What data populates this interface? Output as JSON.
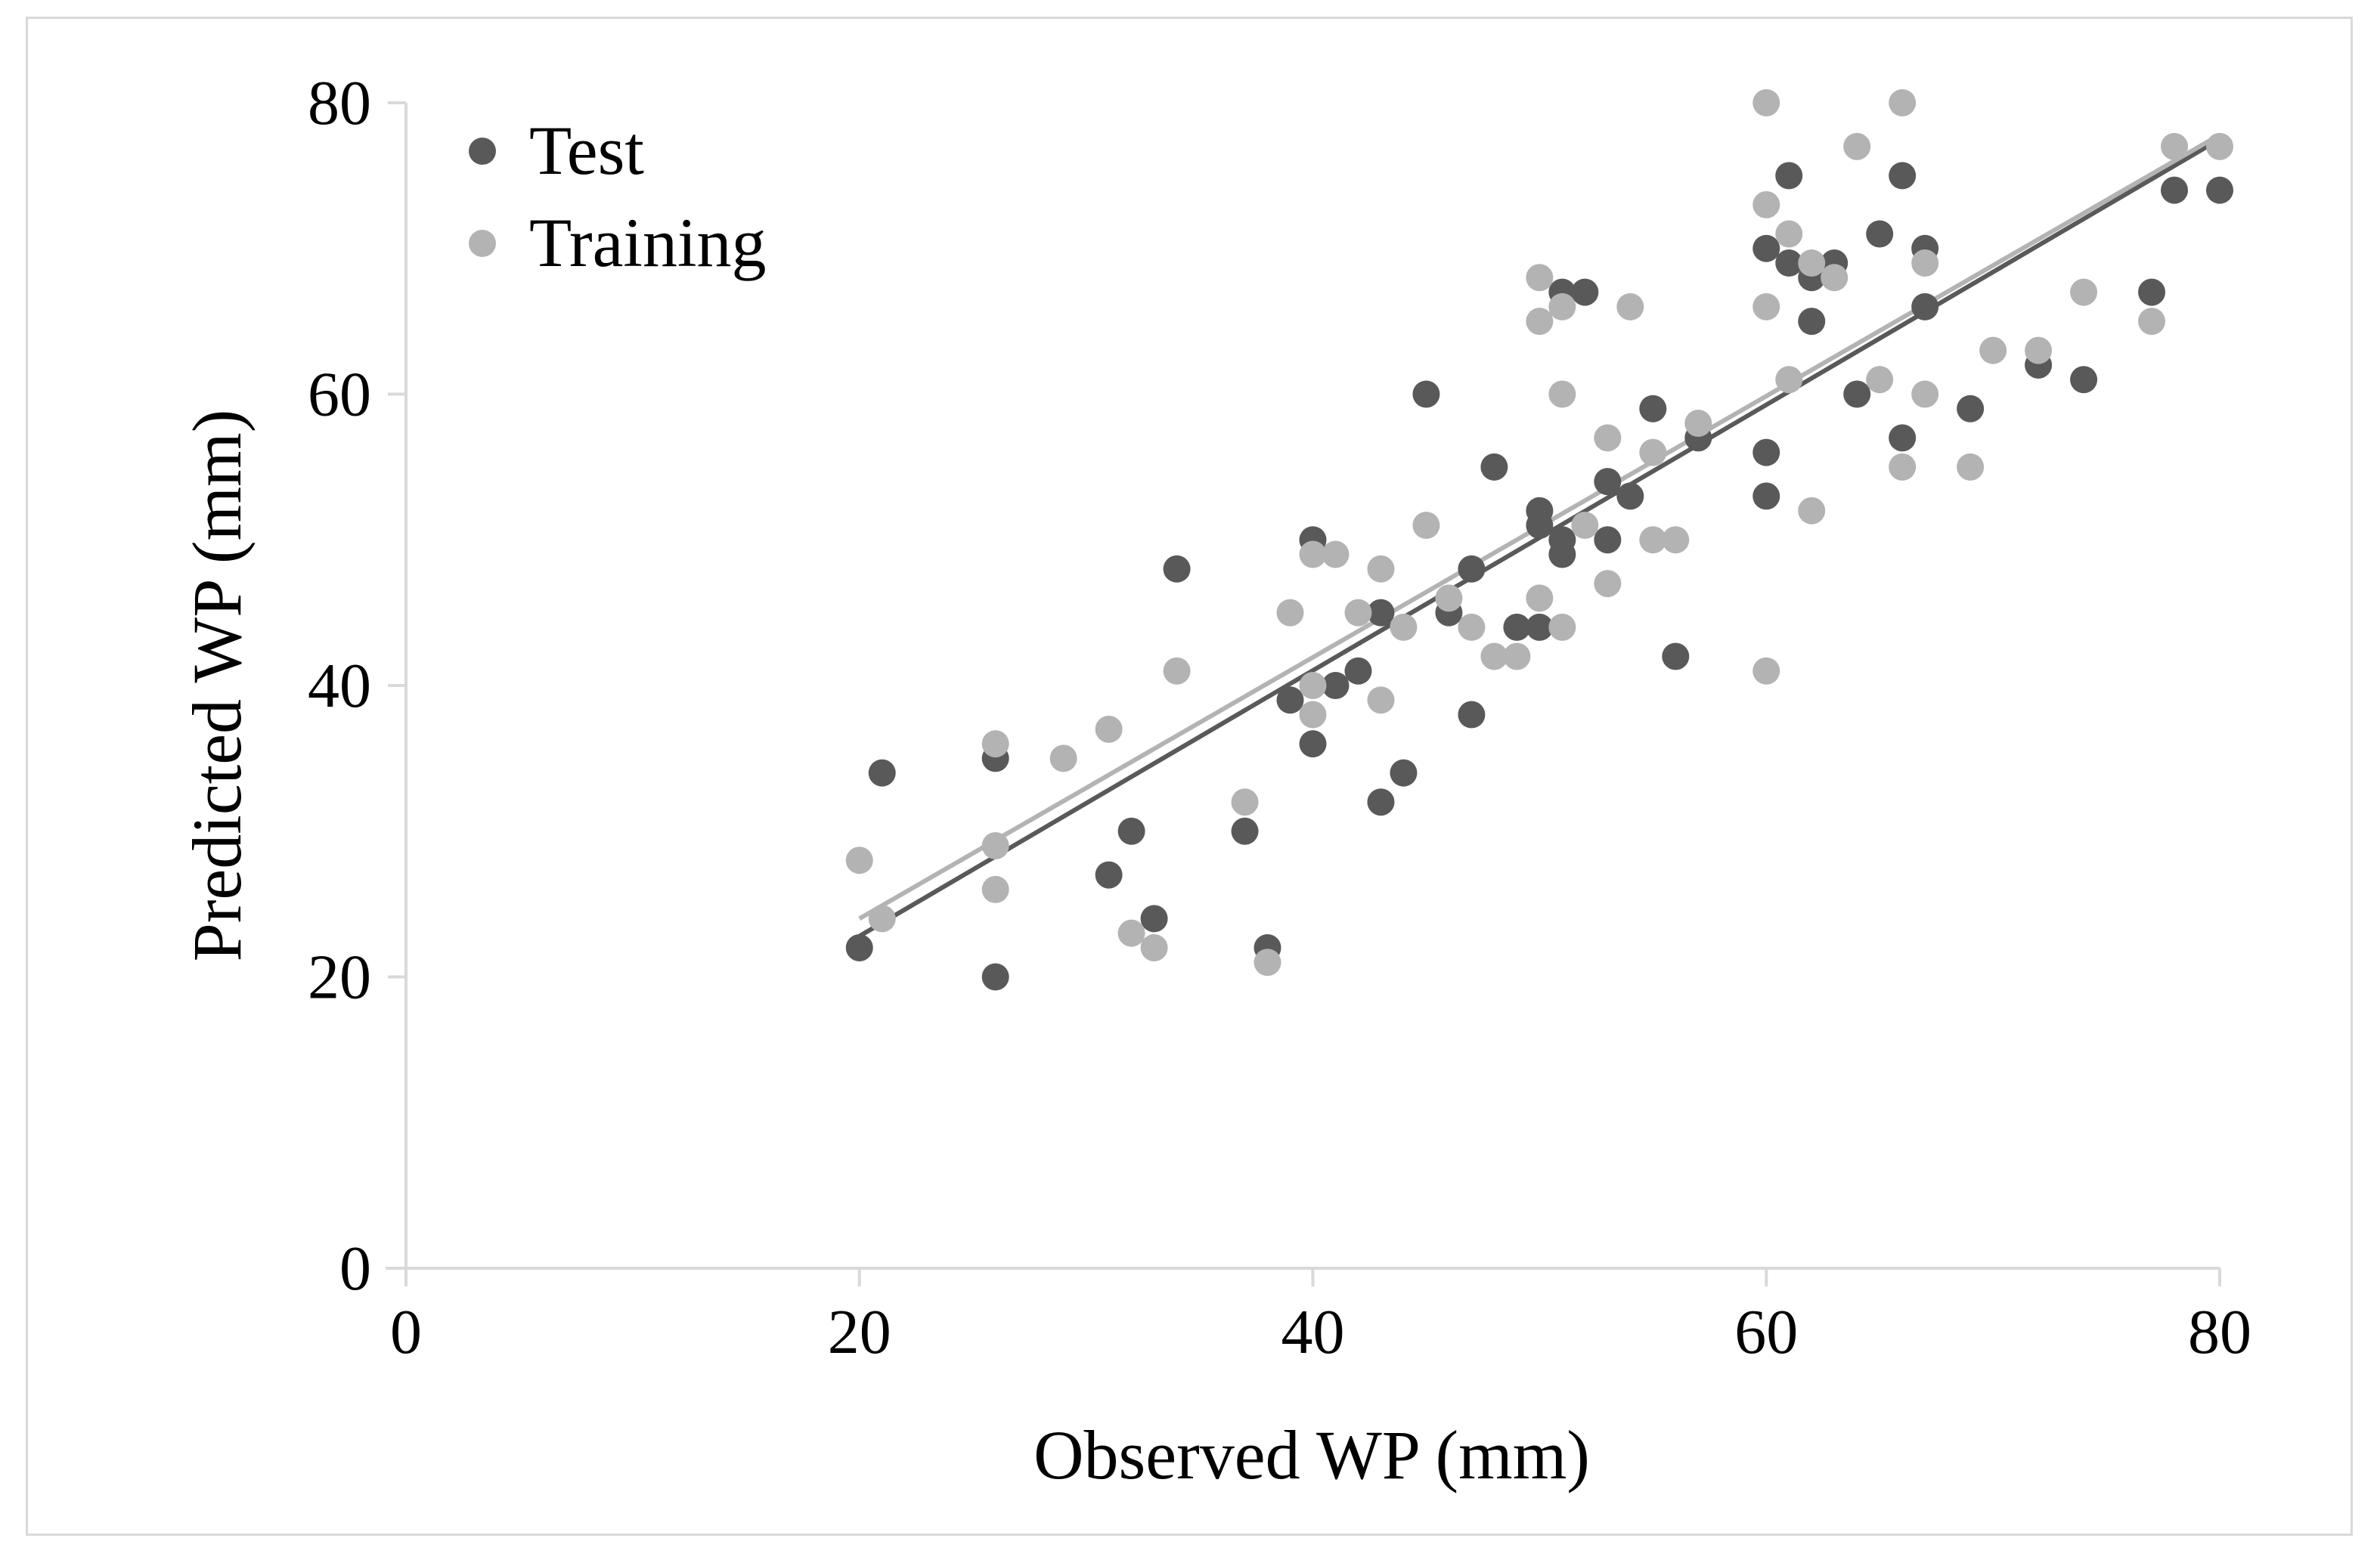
{
  "chart_data": {
    "type": "scatter",
    "title": "",
    "xlabel": "Observed WP (mm)",
    "ylabel": "Predicted WP (mm)",
    "xlim": [
      0,
      80
    ],
    "ylim": [
      0,
      80
    ],
    "xticks": [
      0,
      20,
      40,
      60,
      80
    ],
    "yticks": [
      0,
      20,
      40,
      60,
      80
    ],
    "grid": false,
    "legend_position": "top-left",
    "series": [
      {
        "name": "Test",
        "color": "#595959",
        "trendline": {
          "x": [
            20,
            80
          ],
          "y": [
            22.8,
            77.5
          ]
        },
        "points": [
          [
            20,
            22
          ],
          [
            21,
            34
          ],
          [
            26,
            35
          ],
          [
            26,
            20
          ],
          [
            31,
            27
          ],
          [
            32,
            30
          ],
          [
            33,
            24
          ],
          [
            34,
            48
          ],
          [
            37,
            30
          ],
          [
            38,
            22
          ],
          [
            39,
            39
          ],
          [
            40,
            50
          ],
          [
            40,
            36
          ],
          [
            41,
            40
          ],
          [
            42,
            41
          ],
          [
            43,
            45
          ],
          [
            43,
            32
          ],
          [
            44,
            34
          ],
          [
            45,
            60
          ],
          [
            46,
            45
          ],
          [
            47,
            48
          ],
          [
            47,
            38
          ],
          [
            48,
            55
          ],
          [
            49,
            44
          ],
          [
            50,
            52
          ],
          [
            50,
            51
          ],
          [
            50,
            44
          ],
          [
            51,
            67
          ],
          [
            51,
            50
          ],
          [
            51,
            49
          ],
          [
            52,
            67
          ],
          [
            53,
            54
          ],
          [
            53,
            50
          ],
          [
            54,
            53
          ],
          [
            55,
            59
          ],
          [
            56,
            42
          ],
          [
            57,
            57
          ],
          [
            60,
            70
          ],
          [
            60,
            56
          ],
          [
            60,
            53
          ],
          [
            61,
            75
          ],
          [
            61,
            69
          ],
          [
            62,
            68
          ],
          [
            62,
            65
          ],
          [
            63,
            69
          ],
          [
            64,
            60
          ],
          [
            65,
            71
          ],
          [
            66,
            75
          ],
          [
            66,
            57
          ],
          [
            67,
            70
          ],
          [
            67,
            66
          ],
          [
            69,
            59
          ],
          [
            72,
            62
          ],
          [
            74,
            61
          ],
          [
            77,
            67
          ],
          [
            78,
            74
          ],
          [
            80,
            74
          ]
        ]
      },
      {
        "name": "Training",
        "color": "#b3b3b3",
        "trendline": {
          "x": [
            20,
            80
          ],
          "y": [
            24.0,
            77.8
          ]
        },
        "points": [
          [
            20,
            28
          ],
          [
            21,
            24
          ],
          [
            26,
            36
          ],
          [
            26,
            29
          ],
          [
            26,
            26
          ],
          [
            29,
            35
          ],
          [
            31,
            37
          ],
          [
            32,
            23
          ],
          [
            33,
            22
          ],
          [
            34,
            41
          ],
          [
            37,
            32
          ],
          [
            38,
            21
          ],
          [
            39,
            45
          ],
          [
            40,
            49
          ],
          [
            40,
            40
          ],
          [
            40,
            38
          ],
          [
            41,
            49
          ],
          [
            42,
            45
          ],
          [
            43,
            48
          ],
          [
            43,
            39
          ],
          [
            44,
            44
          ],
          [
            45,
            51
          ],
          [
            46,
            46
          ],
          [
            47,
            44
          ],
          [
            48,
            42
          ],
          [
            49,
            42
          ],
          [
            50,
            68
          ],
          [
            50,
            65
          ],
          [
            50,
            46
          ],
          [
            51,
            66
          ],
          [
            51,
            60
          ],
          [
            51,
            44
          ],
          [
            52,
            51
          ],
          [
            53,
            57
          ],
          [
            53,
            47
          ],
          [
            54,
            66
          ],
          [
            55,
            56
          ],
          [
            55,
            50
          ],
          [
            56,
            50
          ],
          [
            57,
            58
          ],
          [
            60,
            80
          ],
          [
            60,
            73
          ],
          [
            60,
            66
          ],
          [
            60,
            41
          ],
          [
            61,
            71
          ],
          [
            61,
            61
          ],
          [
            62,
            69
          ],
          [
            62,
            52
          ],
          [
            63,
            68
          ],
          [
            64,
            77
          ],
          [
            65,
            61
          ],
          [
            66,
            80
          ],
          [
            66,
            55
          ],
          [
            67,
            69
          ],
          [
            67,
            60
          ],
          [
            69,
            55
          ],
          [
            70,
            63
          ],
          [
            72,
            63
          ],
          [
            74,
            67
          ],
          [
            77,
            65
          ],
          [
            78,
            77
          ],
          [
            80,
            77
          ]
        ]
      }
    ]
  }
}
